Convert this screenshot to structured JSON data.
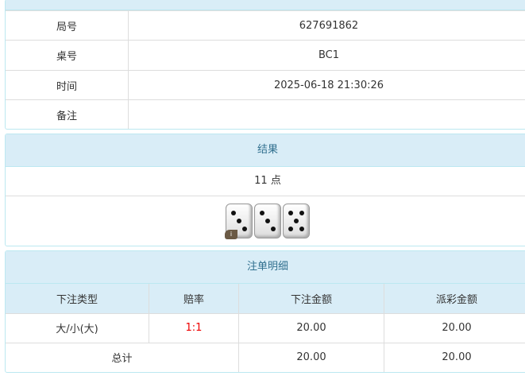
{
  "info": {
    "rows": [
      {
        "label": "局号",
        "value": "627691862"
      },
      {
        "label": "桌号",
        "value": "BC1"
      },
      {
        "label": "时间",
        "value": "2025-06-18 21:30:26"
      },
      {
        "label": "备注",
        "value": ""
      }
    ]
  },
  "result": {
    "title": "结果",
    "points": "11 点",
    "dice": [
      3,
      3,
      5
    ],
    "info_badge": "i"
  },
  "bets": {
    "title": "注单明细",
    "headers": [
      "下注类型",
      "赔率",
      "下注金额",
      "派彩金额"
    ],
    "rows": [
      {
        "type": "大/小(大)",
        "odds": "1:1",
        "amount": "20.00",
        "payout": "20.00"
      }
    ],
    "total": {
      "label": "总计",
      "amount": "20.00",
      "payout": "20.00"
    }
  },
  "colors": {
    "header_bg": "#d9edf7",
    "header_text": "#31708f",
    "odds": "#ee0000"
  }
}
